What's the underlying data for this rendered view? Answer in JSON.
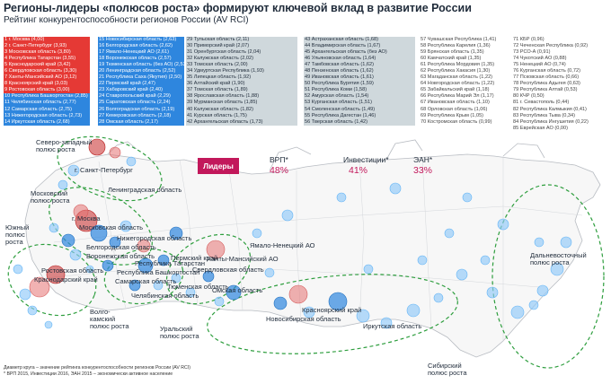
{
  "title": "Регионы-лидеры «полюсов роста» формируют ключевой вклад в развитие России",
  "subtitle": "Рейтинг конкурентоспособности регионов России (AV RCI)",
  "colors": {
    "dark": "#c62828",
    "red": "#e53935",
    "blue": "#2e86de",
    "light": "#cfd8dc",
    "grey": "#e8e8e8",
    "magenta": "#c2185b"
  },
  "rating_columns": [
    {
      "style": "mixed",
      "items": [
        {
          "t": "1  г. Москва (4,00)",
          "c": "red"
        },
        {
          "t": "2  г. Санкт-Петербург (3,93)",
          "c": "red"
        },
        {
          "t": "3  Московская область (3,80)",
          "c": "red"
        },
        {
          "t": "4  Республика Татарстан (3,55)",
          "c": "red"
        },
        {
          "t": "5  Краснодарский край (3,42)",
          "c": "red"
        },
        {
          "t": "6  Свердловская область (3,30)",
          "c": "red"
        },
        {
          "t": "7  Ханты-Мансийский АО (3,12)",
          "c": "red"
        },
        {
          "t": "8  Красноярский край (3,03)",
          "c": "red"
        },
        {
          "t": "9  Ростовская область (3,00)",
          "c": "red"
        },
        {
          "t": "10  Республика Башкортостан (2,85)",
          "c": "blue"
        },
        {
          "t": "11  Челябинская область (2,77)",
          "c": "blue"
        },
        {
          "t": "12  Самарская область (2,75)",
          "c": "blue"
        },
        {
          "t": "13  Нижегородская область (2,73)",
          "c": "blue"
        },
        {
          "t": "14  Иркутская область (2,68)",
          "c": "blue"
        }
      ]
    },
    {
      "style": "blue",
      "items": [
        {
          "t": "15  Новосибирская область (2,63)"
        },
        {
          "t": "16  Белгородская область (2,62)"
        },
        {
          "t": "17  Ямало-Ненецкий АО (2,61)"
        },
        {
          "t": "18  Воронежская область (2,57)"
        },
        {
          "t": "19  Тюменская область (без АО) (2,53)"
        },
        {
          "t": "20  Ленинградская область (2,52)"
        },
        {
          "t": "21  Республика Саха (Якутия) (2,50)"
        },
        {
          "t": "22  Пермский край (2,47)"
        },
        {
          "t": "23  Хабаровский край (2,40)"
        },
        {
          "t": "24  Ставропольский край (2,29)"
        },
        {
          "t": "25  Саратовская область (2,24)"
        },
        {
          "t": "26  Волгоградская область (2,19)"
        },
        {
          "t": "27  Кемеровская область (2,18)"
        },
        {
          "t": "28  Омская область (2,17)"
        }
      ]
    },
    {
      "style": "light",
      "items": [
        {
          "t": "29  Тульская область (2,11)"
        },
        {
          "t": "30  Приморский край (2,07)"
        },
        {
          "t": "31  Оренбургская область (2,04)"
        },
        {
          "t": "32  Калужская область (2,02)"
        },
        {
          "t": "33  Томская область (2,00)"
        },
        {
          "t": "34  Удмуртская Республика (1,93)"
        },
        {
          "t": "35  Липецкая область (1,92)"
        },
        {
          "t": "36  Алтайский край (1,90)"
        },
        {
          "t": "37  Томская область (1,89)"
        },
        {
          "t": "38  Ярославская область (1,88)"
        },
        {
          "t": "39  Мурманская область (1,85)"
        },
        {
          "t": "40  Калужская область (1,82)"
        },
        {
          "t": "41  Курская область (1,75)"
        },
        {
          "t": "42  Архангельская область (1,73)"
        }
      ]
    },
    {
      "style": "light",
      "items": [
        {
          "t": "43  Астраханская область (1,68)"
        },
        {
          "t": "44  Владимирская область (1,67)"
        },
        {
          "t": "45  Архангельская область (без АО)"
        },
        {
          "t": "46  Ульяновская область (1,64)"
        },
        {
          "t": "47  Тамбовская область (1,62)"
        },
        {
          "t": "48  Пензенская область (1,62)"
        },
        {
          "t": "49  Ивановская область (1,61)"
        },
        {
          "t": "50  Республика Бурятия (1,59)"
        },
        {
          "t": "51  Республика Коми (1,58)"
        },
        {
          "t": "52  Амурская область (1,54)"
        },
        {
          "t": "53  Курганская область (1,51)"
        },
        {
          "t": "54  Смоленская область (1,49)"
        },
        {
          "t": "55  Республика Дагестан (1,46)"
        },
        {
          "t": "56  Тверская область (1,42)"
        }
      ]
    },
    {
      "style": "grey",
      "items": [
        {
          "t": "57  Чувашская Республика (1,41)"
        },
        {
          "t": "58  Республика Карелия (1,36)"
        },
        {
          "t": "59  Брянская область (1,35)"
        },
        {
          "t": "60  Камчатский край (1,35)"
        },
        {
          "t": "61  Республика Мордовия (1,35)"
        },
        {
          "t": "62  Республика Хакасия (1,30)"
        },
        {
          "t": "63  Магаданская область (1,22)"
        },
        {
          "t": "64  Новгородская область (1,22)"
        },
        {
          "t": "65  Забайкальский край (1,18)"
        },
        {
          "t": "66  Республика Марий Эл (1,17)"
        },
        {
          "t": "67  Ивановская область (1,10)"
        },
        {
          "t": "68  Орловская область (1,06)"
        },
        {
          "t": "69  Республика Крым (1,05)"
        },
        {
          "t": "70  Костромская область (0,99)"
        }
      ]
    },
    {
      "style": "grey",
      "items": [
        {
          "t": "71  КБР (0,96)"
        },
        {
          "t": "72  Чеченская Республика (0,92)"
        },
        {
          "t": "73  РСО-А (0,91)"
        },
        {
          "t": "74  Чукотский АО (0,88)"
        },
        {
          "t": "75  Ненецкий АО (0,74)"
        },
        {
          "t": "76  Курганская область (0,72)"
        },
        {
          "t": "77  Псковская область (0,66)"
        },
        {
          "t": "78  Республика Адыгея (0,63)"
        },
        {
          "t": "79  Республика Алтай (0,53)"
        },
        {
          "t": "80  КЧР (0,50)"
        },
        {
          "t": "81  г. Севастополь (0,44)"
        },
        {
          "t": "82  Республика Калмыкия (0,41)"
        },
        {
          "t": "83  Республика Тыва (0,34)"
        },
        {
          "t": "84  Республика Ингушетия (0,22)"
        },
        {
          "t": "85  Еврейская АО (0,00)"
        }
      ]
    }
  ],
  "legend": {
    "badge": "Лидеры",
    "metrics": [
      {
        "name": "ВРП*",
        "value": "48%"
      },
      {
        "name": "Инвестиции*",
        "value": "41%"
      },
      {
        "name": "ЭАН*",
        "value": "33%"
      }
    ]
  },
  "poles": {
    "nw": "Северо-западный полюс роста",
    "moscow": "Московский полюс роста",
    "south": "Южный полюс роста",
    "volga": "Волго-камский полюс роста",
    "ural": "Уральский полюс роста",
    "siberia": "Сибирский полюс роста",
    "fareast": "Дальневосточный полюс роста"
  },
  "map_labels": {
    "spb": "г. Санкт-Петербург",
    "leningrad": "Ленинградская область",
    "moscow": "г. Москва",
    "moscow_obl": "Московская область",
    "nizhny": "Нижегородская область",
    "belgorod": "Белгородская область",
    "voronezh": "Воронежская область",
    "rostov": "Ростовская область",
    "krasnodar": "Краснодарский край",
    "tatarstan": "Республика Татарстан",
    "bashkortostan": "Республика Башкортостан",
    "samara": "Самарская область",
    "perm": "Пермский край",
    "sverdlovsk": "Свердловская область",
    "hmao": "Ханты-Мансийский АО",
    "yanao": "Ямало-Ненецкий АО",
    "tyumen": "Тюменская область",
    "chelyabinsk": "Челябинская область",
    "omsk": "Омская область",
    "novosibirsk": "Новосибирская область",
    "krasnoyarsk": "Красноярский край",
    "irkutsk": "Иркутская область"
  },
  "notes": {
    "line1": "Диаметр круга – значение рейтинга конкурентоспособности регионов России (AV RCI)",
    "line2": "* ВРП 2015, Инвестиции 2016, ЭАН 2015 – экономически активное население"
  }
}
